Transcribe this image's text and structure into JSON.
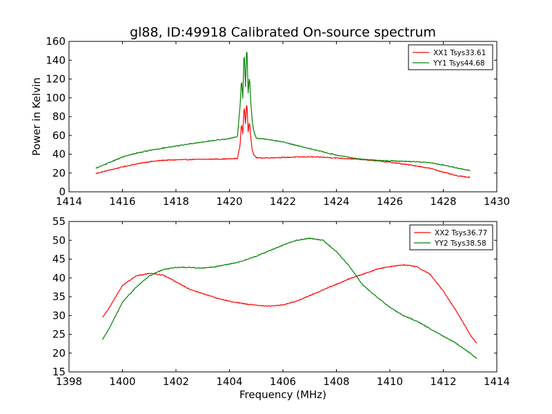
{
  "figure_title": "gl88, ID:49918 Calibrated On-source spectrum",
  "colors": {
    "red": "#ff0000",
    "green": "#008000",
    "axis": "#000000",
    "background": "#ffffff"
  },
  "chart_data": [
    {
      "type": "line",
      "title": "gl88, ID:49918 Calibrated On-source spectrum",
      "xlabel": "",
      "ylabel": "Power in Kelvin",
      "xlim": [
        1414,
        1430
      ],
      "ylim": [
        0,
        160
      ],
      "xticks": [
        1414,
        1416,
        1418,
        1420,
        1422,
        1424,
        1426,
        1428,
        1430
      ],
      "yticks": [
        0,
        20,
        40,
        60,
        80,
        100,
        120,
        140,
        160
      ],
      "grid": false,
      "legend_position": "top-right",
      "series": [
        {
          "name": "XX1 Tsys33.61",
          "color": "#ff0000",
          "x": [
            1415.0,
            1415.5,
            1416.0,
            1416.5,
            1417.0,
            1417.5,
            1418.0,
            1418.5,
            1419.0,
            1419.5,
            1420.0,
            1420.3,
            1420.4,
            1420.45,
            1420.5,
            1420.55,
            1420.6,
            1420.65,
            1420.7,
            1420.75,
            1420.8,
            1420.85,
            1420.9,
            1421.0,
            1421.1,
            1421.5,
            1422.0,
            1422.5,
            1423.0,
            1423.5,
            1424.0,
            1424.5,
            1425.0,
            1425.5,
            1426.0,
            1426.5,
            1427.0,
            1427.5,
            1428.0,
            1428.5,
            1429.0
          ],
          "values": [
            19.5,
            23,
            26.5,
            29.5,
            32,
            33.5,
            34,
            34.3,
            34.6,
            34.8,
            35,
            35.5,
            50,
            73,
            62,
            92,
            72,
            97,
            64,
            75,
            58,
            45,
            40,
            36.5,
            36,
            36.2,
            36.5,
            37,
            37.2,
            36.8,
            36,
            35.2,
            34.2,
            33,
            31.5,
            29.5,
            27.5,
            25,
            21,
            17,
            15.5
          ]
        },
        {
          "name": "YY1 Tsys44.68",
          "color": "#008000",
          "x": [
            1415.0,
            1415.5,
            1416.0,
            1416.5,
            1417.0,
            1417.5,
            1418.0,
            1418.5,
            1419.0,
            1419.5,
            1420.0,
            1420.3,
            1420.4,
            1420.45,
            1420.5,
            1420.55,
            1420.6,
            1420.65,
            1420.7,
            1420.75,
            1420.8,
            1420.85,
            1420.9,
            1421.0,
            1421.5,
            1422.0,
            1422.5,
            1423.0,
            1423.5,
            1424.0,
            1424.5,
            1425.0,
            1425.5,
            1426.0,
            1426.5,
            1427.0,
            1427.5,
            1428.0,
            1428.5,
            1429.0
          ],
          "values": [
            25,
            31,
            37,
            41,
            44,
            46.5,
            48.5,
            51,
            53,
            55,
            56.5,
            59,
            92,
            120,
            100,
            151,
            112,
            158,
            105,
            123,
            95,
            76,
            66,
            57,
            55.5,
            53,
            49.5,
            46,
            42.5,
            39,
            36.5,
            34.5,
            33.5,
            33,
            32.5,
            32,
            31,
            28.5,
            25.5,
            22.5
          ]
        }
      ]
    },
    {
      "type": "line",
      "title": "",
      "xlabel": "Frequency (MHz)",
      "ylabel": "",
      "xlim": [
        1398,
        1414
      ],
      "ylim": [
        15,
        55
      ],
      "xticks": [
        1398,
        1400,
        1402,
        1404,
        1406,
        1408,
        1410,
        1412,
        1414
      ],
      "yticks": [
        15,
        20,
        25,
        30,
        35,
        40,
        45,
        50,
        55
      ],
      "grid": false,
      "legend_position": "top-right",
      "series": [
        {
          "name": "XX2 Tsys36.77",
          "color": "#ff0000",
          "x": [
            1399.25,
            1399.5,
            1400.0,
            1400.5,
            1401.0,
            1401.5,
            1402.0,
            1402.5,
            1403.0,
            1403.5,
            1404.0,
            1404.5,
            1405.0,
            1405.5,
            1406.0,
            1406.5,
            1407.0,
            1407.5,
            1408.0,
            1408.5,
            1409.0,
            1409.5,
            1410.0,
            1410.5,
            1411.0,
            1411.5,
            1412.0,
            1412.5,
            1413.0,
            1413.25
          ],
          "values": [
            29.5,
            32,
            38,
            40.5,
            41.2,
            40.8,
            39,
            37,
            35.8,
            34.7,
            33.8,
            33.2,
            32.7,
            32.5,
            32.8,
            33.8,
            35.3,
            36.8,
            38.3,
            39.8,
            41,
            42.3,
            43,
            43.5,
            43,
            41,
            36.5,
            31,
            25,
            22.5
          ]
        },
        {
          "name": "YY2 Tsys38.58",
          "color": "#008000",
          "x": [
            1399.25,
            1399.5,
            1400.0,
            1400.5,
            1401.0,
            1401.5,
            1402.0,
            1402.5,
            1403.0,
            1403.5,
            1404.0,
            1404.5,
            1405.0,
            1405.5,
            1406.0,
            1406.5,
            1407.0,
            1407.5,
            1408.0,
            1408.5,
            1409.0,
            1409.5,
            1410.0,
            1410.5,
            1411.0,
            1411.5,
            1412.0,
            1412.5,
            1413.0,
            1413.25
          ],
          "values": [
            23.5,
            26.5,
            33.5,
            37.5,
            40.5,
            42.2,
            42.8,
            42.8,
            42.6,
            43,
            43.7,
            44.5,
            45.8,
            47.2,
            48.7,
            50,
            50.5,
            50,
            47,
            43,
            38,
            35,
            32.2,
            30,
            28.5,
            26.5,
            24.5,
            22.5,
            20,
            18.5
          ]
        }
      ]
    }
  ]
}
